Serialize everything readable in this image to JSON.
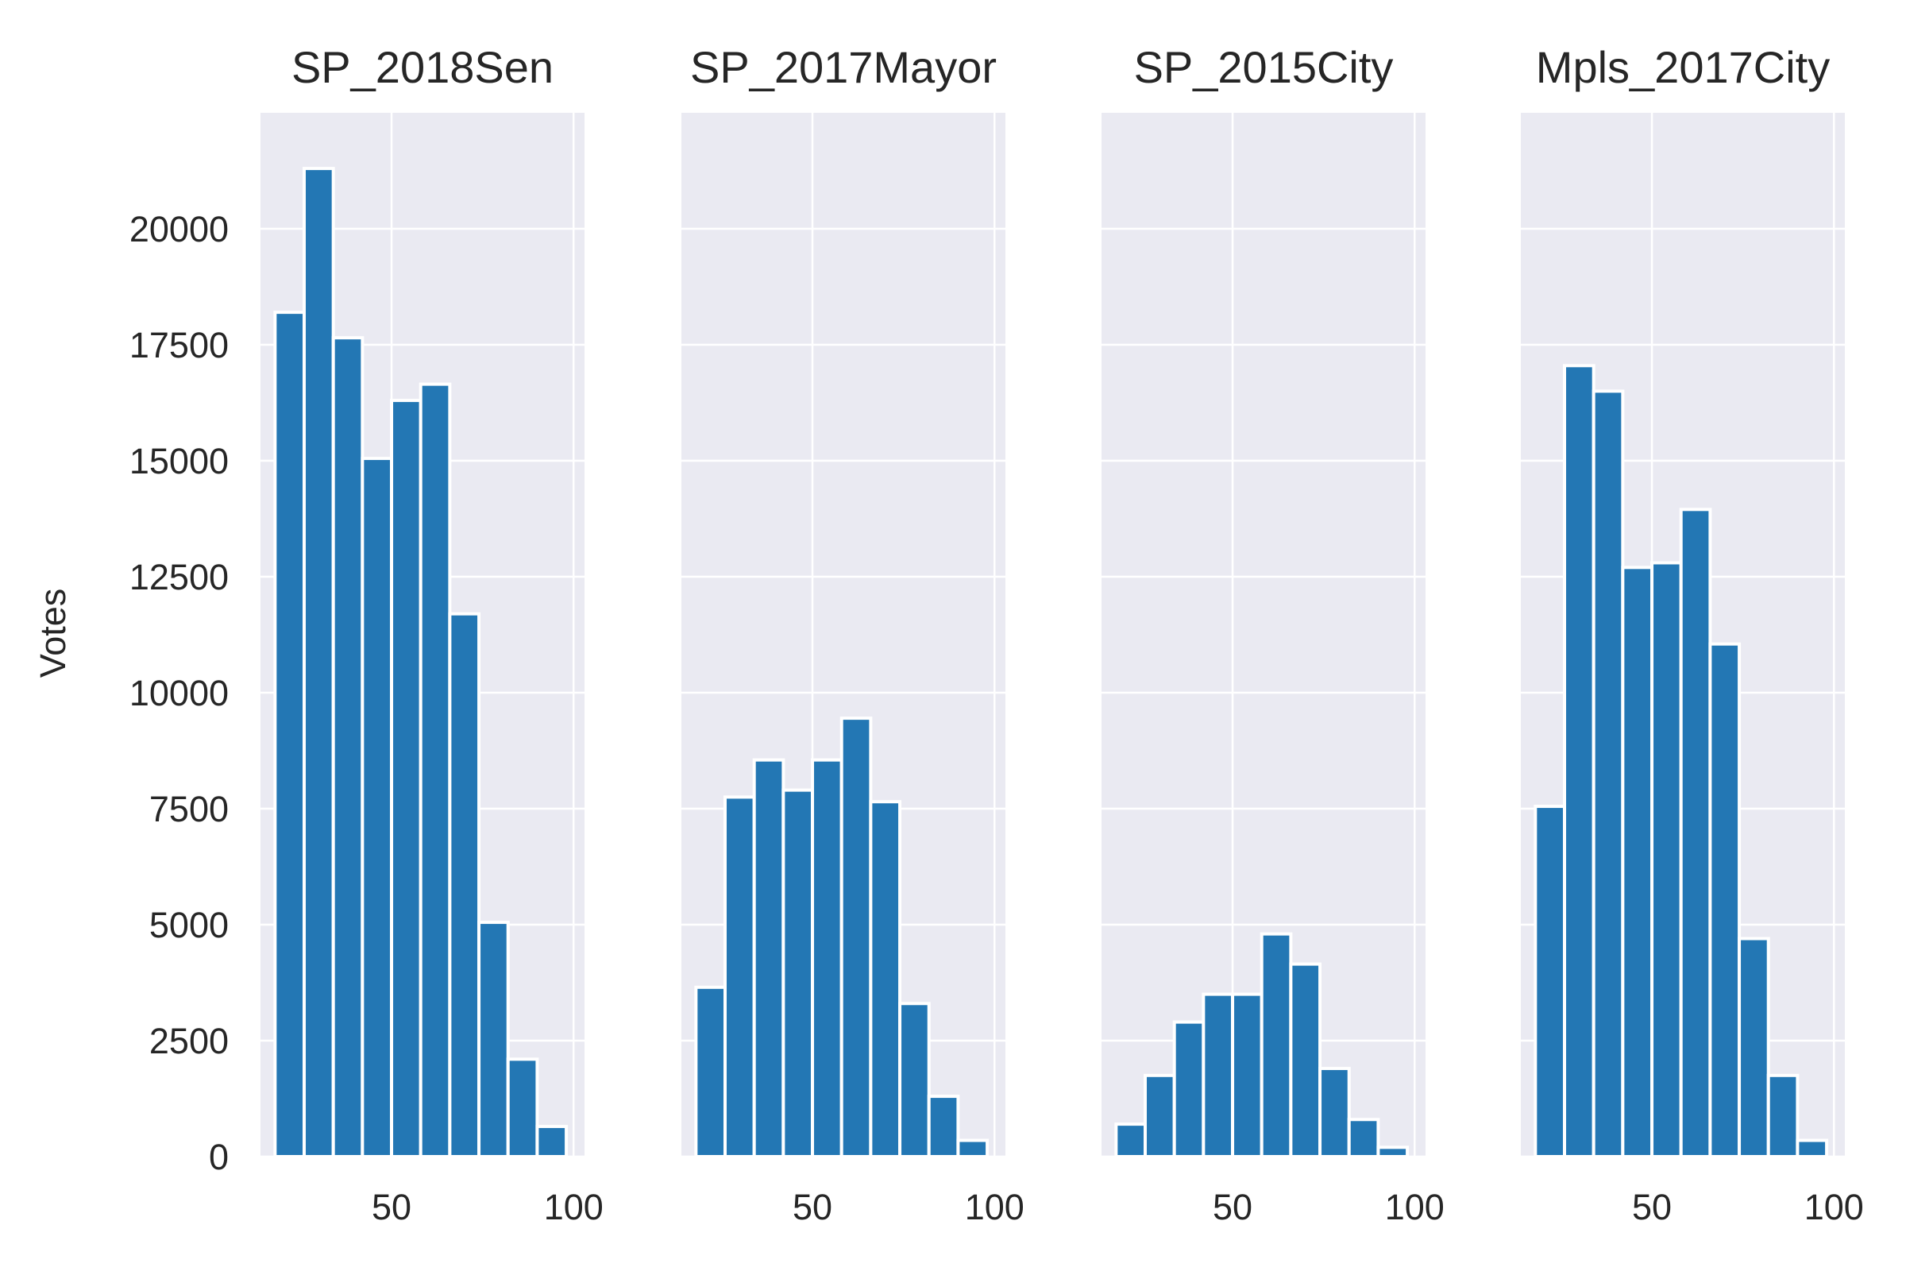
{
  "chart_data": {
    "type": "bar",
    "ylabel": "Votes",
    "ylim": [
      0,
      22500
    ],
    "yticks": [
      0,
      2500,
      5000,
      7500,
      10000,
      12500,
      15000,
      17500,
      20000
    ],
    "xlim": [
      14,
      103
    ],
    "xticks": [
      50,
      100
    ],
    "bin_edges": [
      18,
      26,
      34,
      42,
      50,
      58,
      66,
      74,
      82,
      90,
      98
    ],
    "grid": true,
    "shared_y": true,
    "colors": {
      "bar": "#2377b4",
      "bar_edge": "#ffffff",
      "panel_bg": "#eaeaf2",
      "grid": "#ffffff"
    },
    "panels": [
      {
        "title": "SP_2018Sen",
        "values": [
          18200,
          21300,
          17650,
          15050,
          16300,
          16650,
          11700,
          5050,
          2100,
          650
        ]
      },
      {
        "title": "SP_2017Mayor",
        "values": [
          3650,
          7750,
          8550,
          7900,
          8550,
          9450,
          7650,
          3300,
          1300,
          350
        ]
      },
      {
        "title": "SP_2015City",
        "values": [
          700,
          1750,
          2900,
          3500,
          3500,
          4800,
          4150,
          1900,
          800,
          200
        ]
      },
      {
        "title": "Mpls_2017City",
        "values": [
          7550,
          17050,
          16500,
          12700,
          12800,
          13950,
          11050,
          4700,
          1750,
          350
        ]
      }
    ]
  }
}
